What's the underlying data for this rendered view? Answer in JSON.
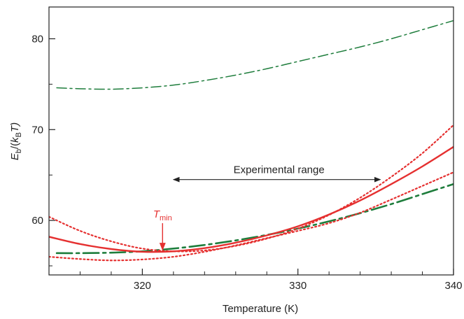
{
  "chart_data": {
    "type": "line",
    "title": "",
    "xlabel": "Temperature (K)",
    "ylabel": {
      "main": "E",
      "sub1": "b",
      "mid": "/(k",
      "sub2": "B",
      "tail": "T)"
    },
    "xlim": [
      314,
      340
    ],
    "ylim": [
      54,
      83.5
    ],
    "x_ticks": [
      320,
      330,
      340
    ],
    "x_ticks_labels": [
      "320",
      "330",
      "340"
    ],
    "x_minor_ticks": [
      316,
      318,
      322,
      324,
      326,
      328,
      332,
      334,
      336,
      338
    ],
    "y_ticks": [
      60,
      70,
      80
    ],
    "y_ticks_labels": [
      "60",
      "70",
      "80"
    ],
    "y_minor_ticks": [
      55,
      65,
      75
    ],
    "grid": false,
    "colors": {
      "red": "#e53030",
      "green": "#1e7d3c",
      "axis": "#222222"
    },
    "series": [
      {
        "style": "green-dashdot-thin",
        "x": [
          314.5,
          316,
          318,
          320,
          322,
          324,
          326,
          328,
          330,
          332,
          334,
          336,
          338,
          340
        ],
        "y": [
          74.6,
          74.5,
          74.45,
          74.6,
          74.9,
          75.4,
          76.0,
          76.7,
          77.5,
          78.3,
          79.1,
          80.0,
          81.0,
          82.0
        ]
      },
      {
        "style": "green-dashdot-thick",
        "x": [
          314.5,
          316,
          318,
          320,
          322,
          324,
          326,
          328,
          330,
          332,
          334,
          336,
          338,
          340
        ],
        "y": [
          56.4,
          56.4,
          56.45,
          56.6,
          56.9,
          57.3,
          57.8,
          58.4,
          59.1,
          59.9,
          60.8,
          61.8,
          62.9,
          64.0
        ]
      },
      {
        "style": "red-solid",
        "x": [
          314,
          316,
          318,
          320,
          322,
          324,
          326,
          328,
          330,
          332,
          334,
          336,
          338,
          340
        ],
        "y": [
          58.2,
          57.4,
          56.85,
          56.55,
          56.6,
          56.95,
          57.55,
          58.35,
          59.35,
          60.65,
          62.2,
          64.0,
          65.95,
          68.1
        ]
      },
      {
        "style": "red-dotted-upper",
        "x": [
          314,
          316,
          318,
          320,
          322,
          324,
          326,
          328,
          330,
          332,
          334,
          336,
          338,
          340
        ],
        "y": [
          60.4,
          58.85,
          57.7,
          56.9,
          56.6,
          56.7,
          57.2,
          58.0,
          59.1,
          60.6,
          62.5,
          64.8,
          67.4,
          70.5
        ]
      },
      {
        "style": "red-dotted-lower",
        "x": [
          314,
          316,
          318,
          320,
          322,
          324,
          326,
          328,
          330,
          332,
          334,
          336,
          338,
          340
        ],
        "y": [
          56.0,
          55.75,
          55.6,
          55.7,
          56.0,
          56.55,
          57.25,
          58.05,
          58.85,
          59.7,
          60.85,
          62.3,
          63.8,
          65.3
        ]
      }
    ],
    "annotations": {
      "range_label": "Experimental range",
      "range_x": [
        322,
        335.3
      ],
      "range_y": 64.5,
      "tmin_label_main": "T",
      "tmin_label_sub": "min",
      "tmin_x": 321.3,
      "tmin_arrow_from_y": 59.7,
      "tmin_arrow_to_y": 56.6
    }
  }
}
